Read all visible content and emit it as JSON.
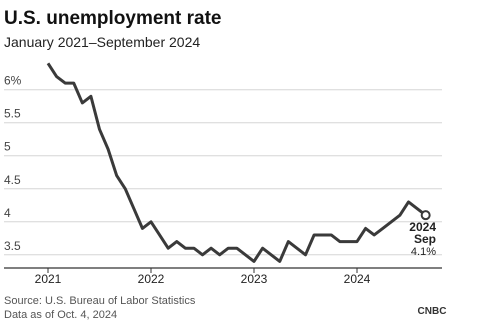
{
  "chart_data": {
    "type": "line",
    "title": "U.S. unemployment rate",
    "subtitle": "January 2021–September 2024",
    "categories": [
      "2021",
      null,
      null,
      null,
      null,
      null,
      null,
      null,
      null,
      null,
      null,
      null,
      "2022",
      null,
      null,
      null,
      null,
      null,
      null,
      null,
      null,
      null,
      null,
      null,
      "2023",
      null,
      null,
      null,
      null,
      null,
      null,
      null,
      null,
      null,
      null,
      null,
      "2024",
      null,
      null,
      null,
      null,
      null,
      null,
      null,
      null
    ],
    "values": [
      6.4,
      6.2,
      6.1,
      6.1,
      5.8,
      5.9,
      5.4,
      5.1,
      4.7,
      4.5,
      4.2,
      3.9,
      4.0,
      3.8,
      3.6,
      3.7,
      3.6,
      3.6,
      3.5,
      3.6,
      3.5,
      3.6,
      3.6,
      3.5,
      3.4,
      3.6,
      3.5,
      3.4,
      3.7,
      3.6,
      3.5,
      3.8,
      3.8,
      3.8,
      3.7,
      3.7,
      3.7,
      3.9,
      3.8,
      3.9,
      4.0,
      4.1,
      4.3,
      4.2,
      4.1
    ],
    "color": "#3a3a3a",
    "ylim": [
      3.3,
      6.45
    ],
    "yticks": [
      3.5,
      4,
      4.5,
      5,
      5.5,
      {
        "value": 6,
        "label": "6%"
      }
    ],
    "grid": true,
    "annotation": {
      "lines": [
        "2024",
        "Sep"
      ],
      "value_label": "4.1%"
    },
    "source": "Source: U.S. Bureau of Labor Statistics",
    "note": "Data as of Oct. 4, 2024",
    "logo": "CNBC"
  }
}
